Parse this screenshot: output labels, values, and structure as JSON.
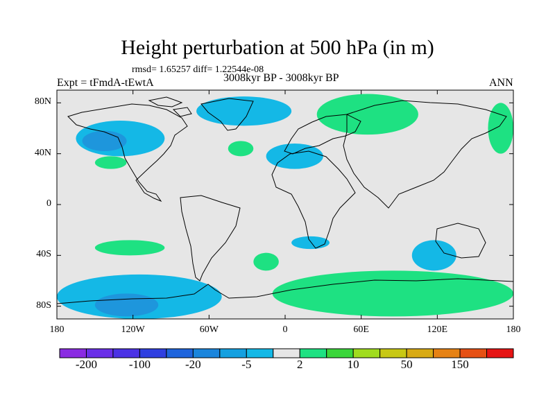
{
  "title": "Height perturbation at 500 hPa (in m)",
  "stats": "rmsd= 1.65257 diff= 1.22544e-08",
  "experiment": "Expt = tFmdA-tEwtA",
  "period": "3008kyr BP - 3008kyr BP",
  "season": "ANN",
  "map": {
    "projection": "cylindrical-equidistant",
    "lon_range": [
      -180,
      180
    ],
    "lat_range": [
      -90,
      90
    ],
    "background_color": "#e6e6e6",
    "coastline_color": "#000000",
    "y_ticks": [
      {
        "lat": 80,
        "label": "80N"
      },
      {
        "lat": 40,
        "label": "40N"
      },
      {
        "lat": 0,
        "label": "0"
      },
      {
        "lat": -40,
        "label": "40S"
      },
      {
        "lat": -80,
        "label": "80S"
      }
    ],
    "x_ticks": [
      {
        "lon": -180,
        "label": "180"
      },
      {
        "lon": -120,
        "label": "120W"
      },
      {
        "lon": -60,
        "label": "60W"
      },
      {
        "lon": 0,
        "label": "0"
      },
      {
        "lon": 60,
        "label": "60E"
      },
      {
        "lon": 120,
        "label": "120E"
      },
      {
        "lon": 180,
        "label": "180"
      }
    ],
    "negative_color": "#14b8e6",
    "negative_dark_color": "#1e96dc",
    "positive_color": "#1ee182",
    "anomaly_regions": [
      {
        "name": "north-atlantic-arctic",
        "sign": "negative",
        "lon": [
          -70,
          5
        ],
        "lat": [
          62,
          85
        ]
      },
      {
        "name": "north-pacific-north-america",
        "sign": "negative",
        "lon": [
          -165,
          -95
        ],
        "lat": [
          38,
          66
        ]
      },
      {
        "name": "mediterranean",
        "sign": "negative",
        "lon": [
          -15,
          30
        ],
        "lat": [
          28,
          48
        ]
      },
      {
        "name": "south-indian-ocean",
        "sign": "negative",
        "lon": [
          100,
          135
        ],
        "lat": [
          -52,
          -28
        ]
      },
      {
        "name": "south-africa",
        "sign": "negative",
        "lon": [
          5,
          35
        ],
        "lat": [
          -35,
          -25
        ]
      },
      {
        "name": "south-pacific-antarctic",
        "sign": "negative",
        "lon": [
          -180,
          -50
        ],
        "lat": [
          -90,
          -55
        ]
      },
      {
        "name": "siberia-arctic",
        "sign": "positive",
        "lon": [
          25,
          105
        ],
        "lat": [
          55,
          87
        ]
      },
      {
        "name": "north-pacific-east",
        "sign": "positive",
        "lon": [
          160,
          180
        ],
        "lat": [
          40,
          80
        ]
      },
      {
        "name": "central-north-pacific",
        "sign": "positive",
        "lon": [
          -150,
          -125
        ],
        "lat": [
          28,
          38
        ]
      },
      {
        "name": "north-atlantic",
        "sign": "positive",
        "lon": [
          -45,
          -25
        ],
        "lat": [
          38,
          50
        ]
      },
      {
        "name": "south-pacific",
        "sign": "positive",
        "lon": [
          -150,
          -95
        ],
        "lat": [
          -40,
          -28
        ]
      },
      {
        "name": "south-atlantic",
        "sign": "positive",
        "lon": [
          -25,
          -5
        ],
        "lat": [
          -52,
          -38
        ]
      },
      {
        "name": "southern-ocean",
        "sign": "positive",
        "lon": [
          -10,
          180
        ],
        "lat": [
          -88,
          -52
        ]
      }
    ]
  },
  "colorbar": {
    "colors": [
      "#8a2be2",
      "#6a2fe8",
      "#4b32e5",
      "#2f3fe0",
      "#1e64dc",
      "#1a85dc",
      "#14a0e0",
      "#14b8e6",
      "#e6e6e6",
      "#1ee182",
      "#3ad63a",
      "#a0dc1e",
      "#c8c814",
      "#d8aa14",
      "#e68214",
      "#e65014",
      "#e61414"
    ],
    "labels": [
      "-200",
      "-100",
      "-20",
      "-5",
      "2",
      "10",
      "50",
      "150"
    ]
  }
}
